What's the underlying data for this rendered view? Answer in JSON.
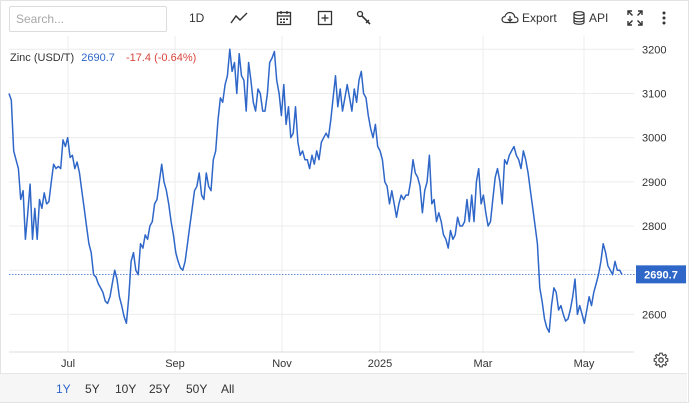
{
  "toolbar": {
    "search_placeholder": "Search...",
    "interval_label": "1D",
    "export_label": "Export",
    "api_label": "API",
    "icons": [
      "line-chart-icon",
      "calendar-icon",
      "add-indicator-icon",
      "draw-tools-icon",
      "cloud-download-icon",
      "database-icon",
      "fullscreen-icon",
      "more-vertical-icon"
    ]
  },
  "series_header": {
    "name": "Zinc (USD/T)",
    "last": "2690.7",
    "change": "-17.4 (-0.64%)"
  },
  "colors": {
    "line": "#2f67c9",
    "change_negative": "#d9453d",
    "grid": "#ececec",
    "last_label_bg": "#2f67c9"
  },
  "chart_data": {
    "type": "line",
    "title": "",
    "series": [
      {
        "name": "Zinc (USD/T)",
        "values": [
          3100,
          3085,
          2970,
          2950,
          2930,
          2860,
          2880,
          2770,
          2830,
          2895,
          2770,
          2840,
          2770,
          2860,
          2840,
          2875,
          2850,
          2855,
          2900,
          2940,
          2930,
          2935,
          2930,
          2995,
          2980,
          3000,
          2955,
          2960,
          2930,
          2945,
          2920,
          2880,
          2840,
          2800,
          2760,
          2740,
          2690,
          2685,
          2670,
          2660,
          2650,
          2630,
          2625,
          2640,
          2670,
          2700,
          2680,
          2640,
          2620,
          2595,
          2580,
          2640,
          2720,
          2740,
          2700,
          2690,
          2760,
          2750,
          2780,
          2770,
          2800,
          2810,
          2850,
          2860,
          2900,
          2940,
          2900,
          2880,
          2850,
          2810,
          2780,
          2740,
          2720,
          2705,
          2700,
          2720,
          2760,
          2800,
          2840,
          2880,
          2890,
          2920,
          2870,
          2860,
          2920,
          2890,
          2880,
          2950,
          2970,
          3040,
          3090,
          3080,
          3120,
          3140,
          3200,
          3150,
          3170,
          3100,
          3190,
          3140,
          3130,
          3060,
          3170,
          3130,
          3080,
          3060,
          3110,
          3100,
          3060,
          3060,
          3100,
          3170,
          3180,
          3195,
          3130,
          3100,
          3050,
          3120,
          3030,
          3070,
          3000,
          3010,
          3070,
          2990,
          2960,
          2970,
          2950,
          2950,
          2930,
          2960,
          2940,
          2970,
          2950,
          2990,
          3000,
          3010,
          3000,
          3040,
          3090,
          3140,
          3070,
          3110,
          3060,
          3090,
          3120,
          3090,
          3060,
          3110,
          3080,
          3130,
          3150,
          3100,
          3090,
          3050,
          3020,
          3000,
          3030,
          2980,
          2970,
          2950,
          2900,
          2890,
          2850,
          2880,
          2850,
          2820,
          2850,
          2870,
          2860,
          2870,
          2870,
          2900,
          2950,
          2920,
          2910,
          2890,
          2830,
          2880,
          2900,
          2960,
          2850,
          2860,
          2810,
          2830,
          2810,
          2780,
          2770,
          2750,
          2790,
          2770,
          2780,
          2820,
          2800,
          2800,
          2810,
          2860,
          2810,
          2870,
          2810,
          2900,
          2930,
          2850,
          2870,
          2830,
          2800,
          2810,
          2860,
          2910,
          2930,
          2900,
          2850,
          2950,
          2940,
          2960,
          2970,
          2980,
          2960,
          2950,
          2930,
          2970,
          2950,
          2920,
          2880,
          2840,
          2800,
          2760,
          2660,
          2630,
          2590,
          2570,
          2560,
          2620,
          2660,
          2650,
          2610,
          2620,
          2600,
          2585,
          2590,
          2610,
          2640,
          2680,
          2600,
          2620,
          2600,
          2580,
          2610,
          2640,
          2620,
          2650,
          2670,
          2690,
          2720,
          2760,
          2740,
          2710,
          2700,
          2690,
          2720,
          2700,
          2700,
          2690
        ]
      }
    ],
    "x_ticks": [
      "Jul",
      "Sep",
      "Nov",
      "2025",
      "Mar",
      "May"
    ],
    "y_ticks": [
      2600,
      2700,
      2800,
      2900,
      3000,
      3100,
      3200
    ],
    "ylim": [
      2515,
      3230
    ],
    "last_value": 2690.7,
    "last_value_label": "2690.7",
    "grid": true,
    "legend": "none"
  },
  "range_buttons": [
    {
      "label": "1Y",
      "active": true
    },
    {
      "label": "5Y",
      "active": false
    },
    {
      "label": "10Y",
      "active": false
    },
    {
      "label": "25Y",
      "active": false
    },
    {
      "label": "50Y",
      "active": false
    },
    {
      "label": "All",
      "active": false
    }
  ]
}
